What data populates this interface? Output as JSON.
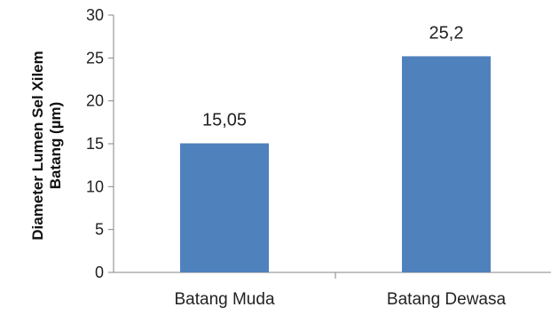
{
  "chart_data": {
    "type": "bar",
    "categories": [
      "Batang Muda",
      "Batang Dewasa"
    ],
    "values": [
      15.05,
      25.2
    ],
    "data_labels": [
      "15,05",
      "25,2"
    ],
    "title": "",
    "xlabel": "",
    "ylabel_lines": [
      "Diameter Lumen Sel Xilem",
      "Batang (µm)"
    ],
    "ylim": [
      0,
      30
    ],
    "yticks": [
      0,
      5,
      10,
      15,
      20,
      25,
      30
    ],
    "grid": false,
    "bar_color": "#4f81bd"
  }
}
